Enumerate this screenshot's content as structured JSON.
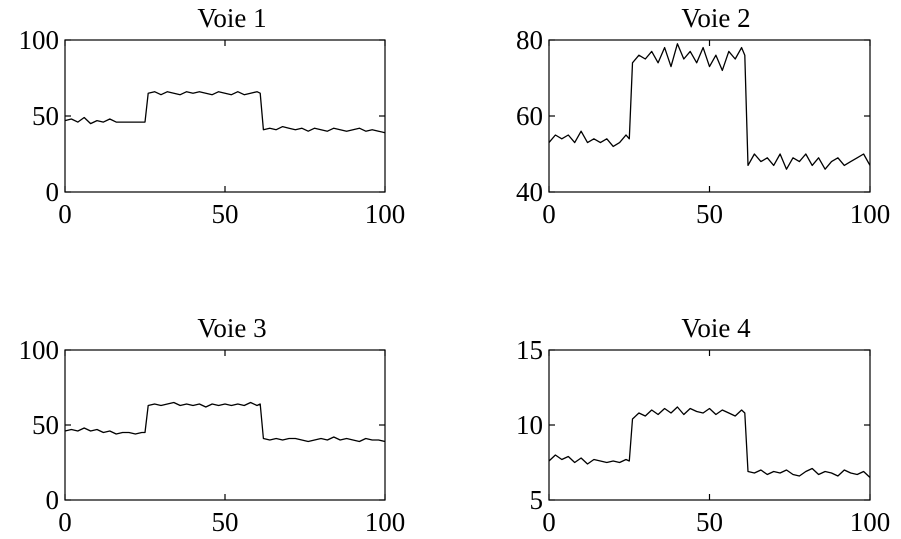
{
  "colors": {
    "line": "#000000",
    "background": "#ffffff"
  },
  "chart_data": [
    {
      "type": "line",
      "title": "Voie 1",
      "xlim": [
        0,
        100
      ],
      "ylim": [
        0,
        100
      ],
      "xticks": [
        0,
        50,
        100
      ],
      "yticks": [
        0,
        50,
        100
      ],
      "series": [
        {
          "x": [
            0,
            2,
            4,
            6,
            8,
            10,
            12,
            14,
            16,
            18,
            20,
            22,
            24,
            25,
            26,
            28,
            30,
            32,
            34,
            36,
            38,
            40,
            42,
            44,
            46,
            48,
            50,
            52,
            54,
            56,
            58,
            60,
            61,
            62,
            64,
            66,
            68,
            70,
            72,
            74,
            76,
            78,
            80,
            82,
            84,
            86,
            88,
            90,
            92,
            94,
            96,
            98,
            100
          ],
          "y": [
            47,
            48,
            46,
            49,
            45,
            47,
            46,
            48,
            46,
            46,
            46,
            46,
            46,
            46,
            65,
            66,
            64,
            66,
            65,
            64,
            66,
            65,
            66,
            65,
            64,
            66,
            65,
            64,
            66,
            64,
            65,
            66,
            65,
            41,
            42,
            41,
            43,
            42,
            41,
            42,
            40,
            42,
            41,
            40,
            42,
            41,
            40,
            41,
            42,
            40,
            41,
            40,
            39
          ]
        }
      ]
    },
    {
      "type": "line",
      "title": "Voie 2",
      "xlim": [
        0,
        100
      ],
      "ylim": [
        40,
        80
      ],
      "xticks": [
        0,
        50,
        100
      ],
      "yticks": [
        40,
        60,
        80
      ],
      "series": [
        {
          "x": [
            0,
            2,
            4,
            6,
            8,
            10,
            12,
            14,
            16,
            18,
            20,
            22,
            24,
            25,
            26,
            28,
            30,
            32,
            34,
            36,
            38,
            40,
            42,
            44,
            46,
            48,
            50,
            52,
            54,
            56,
            58,
            60,
            61,
            62,
            64,
            66,
            68,
            70,
            72,
            74,
            76,
            78,
            80,
            82,
            84,
            86,
            88,
            90,
            92,
            94,
            96,
            98,
            100
          ],
          "y": [
            53,
            55,
            54,
            55,
            53,
            56,
            53,
            54,
            53,
            54,
            52,
            53,
            55,
            54,
            74,
            76,
            75,
            77,
            74,
            78,
            73,
            79,
            75,
            77,
            74,
            78,
            73,
            76,
            72,
            77,
            75,
            78,
            76,
            47,
            50,
            48,
            49,
            47,
            50,
            46,
            49,
            48,
            50,
            47,
            49,
            46,
            48,
            49,
            47,
            48,
            49,
            50,
            47
          ]
        }
      ]
    },
    {
      "type": "line",
      "title": "Voie 3",
      "xlim": [
        0,
        100
      ],
      "ylim": [
        0,
        100
      ],
      "xticks": [
        0,
        50,
        100
      ],
      "yticks": [
        0,
        50,
        100
      ],
      "series": [
        {
          "x": [
            0,
            2,
            4,
            6,
            8,
            10,
            12,
            14,
            16,
            18,
            20,
            22,
            24,
            25,
            26,
            28,
            30,
            32,
            34,
            36,
            38,
            40,
            42,
            44,
            46,
            48,
            50,
            52,
            54,
            56,
            58,
            60,
            61,
            62,
            64,
            66,
            68,
            70,
            72,
            74,
            76,
            78,
            80,
            82,
            84,
            86,
            88,
            90,
            92,
            94,
            96,
            98,
            100
          ],
          "y": [
            46,
            47,
            46,
            48,
            46,
            47,
            45,
            46,
            44,
            45,
            45,
            44,
            45,
            45,
            63,
            64,
            63,
            64,
            65,
            63,
            64,
            63,
            64,
            62,
            64,
            63,
            64,
            63,
            64,
            63,
            65,
            63,
            64,
            41,
            40,
            41,
            40,
            41,
            41,
            40,
            39,
            40,
            41,
            40,
            42,
            40,
            41,
            40,
            39,
            41,
            40,
            40,
            39
          ]
        }
      ]
    },
    {
      "type": "line",
      "title": "Voie 4",
      "xlim": [
        0,
        100
      ],
      "ylim": [
        5,
        15
      ],
      "xticks": [
        0,
        50,
        100
      ],
      "yticks": [
        5,
        10,
        15
      ],
      "series": [
        {
          "x": [
            0,
            2,
            4,
            6,
            8,
            10,
            12,
            14,
            16,
            18,
            20,
            22,
            24,
            25,
            26,
            28,
            30,
            32,
            34,
            36,
            38,
            40,
            42,
            44,
            46,
            48,
            50,
            52,
            54,
            56,
            58,
            60,
            61,
            62,
            64,
            66,
            68,
            70,
            72,
            74,
            76,
            78,
            80,
            82,
            84,
            86,
            88,
            90,
            92,
            94,
            96,
            98,
            100
          ],
          "y": [
            7.6,
            8.0,
            7.7,
            7.9,
            7.5,
            7.8,
            7.4,
            7.7,
            7.6,
            7.5,
            7.6,
            7.5,
            7.7,
            7.6,
            10.4,
            10.8,
            10.6,
            11.0,
            10.7,
            11.1,
            10.8,
            11.2,
            10.7,
            11.1,
            10.9,
            10.8,
            11.1,
            10.7,
            11.0,
            10.8,
            10.6,
            11.0,
            10.8,
            6.9,
            6.8,
            7.0,
            6.7,
            6.9,
            6.8,
            7.0,
            6.7,
            6.6,
            6.9,
            7.1,
            6.7,
            6.9,
            6.8,
            6.6,
            7.0,
            6.8,
            6.7,
            6.9,
            6.5
          ]
        }
      ]
    }
  ]
}
